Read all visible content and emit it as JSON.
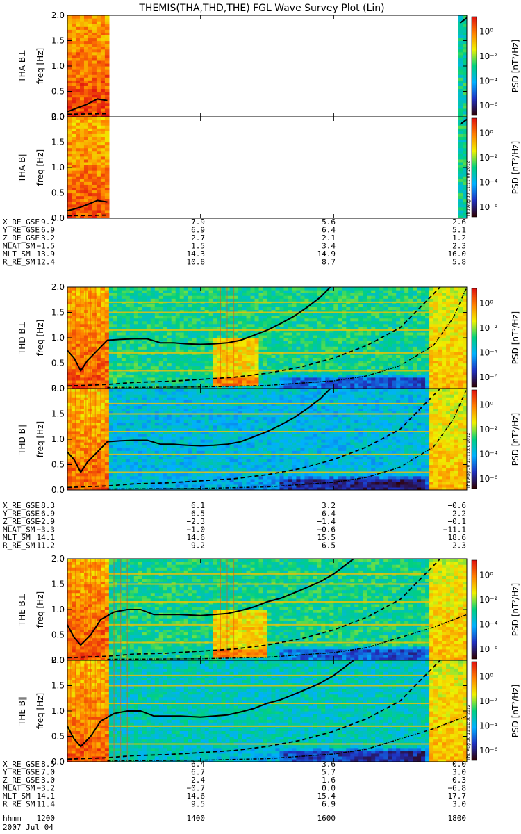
{
  "title": "THEMIS(THA,THD,THE) FGL Wave Survey Plot (Lin)",
  "timestamp": "Thu Aug 30 11:11:00 2012",
  "freq_axis_label": "freq [Hz]",
  "colorbar": {
    "label": "PSD [nT²/Hz]",
    "ticks": [
      "10⁰",
      "10⁻²",
      "10⁻⁴",
      "10⁻⁶"
    ],
    "log_exponents": [
      0,
      -2,
      -4,
      -6
    ],
    "range": [
      -6.8,
      1.2
    ],
    "colors": [
      "#300000",
      "#2030c0",
      "#00b0ff",
      "#00d080",
      "#f0f000",
      "#ff8000",
      "#e01010"
    ]
  },
  "eph_labels": [
    "X_RE_GSE",
    "Y_RE_GSE",
    "Z_RE_GSE",
    "MLAT_SM",
    "MLT_SM",
    "R_RE_SM"
  ],
  "time_axis": {
    "row_label": "hhmm",
    "date": "2007 Jul 04",
    "ticks": [
      "1200",
      "1400",
      "1600",
      "1800"
    ],
    "range_hours": [
      12,
      18
    ]
  },
  "probes": [
    {
      "id": "THA",
      "eph_values": [
        [
          "9.7",
          "7.9",
          "5.6",
          "2.6"
        ],
        [
          "6.9",
          "6.9",
          "6.4",
          "5.1"
        ],
        [
          "−3.2",
          "−2.7",
          "−2.1",
          "−1.2"
        ],
        [
          "−1.5",
          "1.5",
          "3.4",
          "2.3"
        ],
        [
          "13.9",
          "14.3",
          "14.9",
          "16.0"
        ],
        [
          "12.4",
          "10.8",
          "8.7",
          "5.8"
        ]
      ]
    },
    {
      "id": "THD",
      "eph_values": [
        [
          "8.3",
          "6.1",
          "3.2",
          "−0.6"
        ],
        [
          "6.9",
          "6.5",
          "6.4",
          "2.2"
        ],
        [
          "−2.9",
          "−2.3",
          "−1.4",
          "−0.1"
        ],
        [
          "−3.3",
          "−1.0",
          "−0.6",
          "−11.1"
        ],
        [
          "14.1",
          "14.6",
          "15.5",
          "18.6"
        ],
        [
          "11.2",
          "9.2",
          "6.5",
          "2.3"
        ]
      ]
    },
    {
      "id": "THE",
      "eph_values": [
        [
          "8.5",
          "6.4",
          "3.6",
          "0.0"
        ],
        [
          "7.0",
          "6.7",
          "5.7",
          "3.0"
        ],
        [
          "−3.0",
          "−2.4",
          "−1.6",
          "−0.3"
        ],
        [
          "−3.2",
          "−0.7",
          "0.0",
          "−6.8"
        ],
        [
          "14.1",
          "14.6",
          "15.4",
          "17.7"
        ],
        [
          "11.4",
          "9.5",
          "6.9",
          "3.0"
        ]
      ]
    }
  ],
  "chart_data": {
    "type": "heatmap",
    "title": "THEMIS(THA,THD,THE) FGL Wave Survey Plot (Lin)",
    "xlabel": "hhmm",
    "x_ticks": [
      "1200",
      "1400",
      "1600",
      "1800"
    ],
    "xlim_hours": [
      12,
      18
    ],
    "ylabel": "freq [Hz]",
    "y_ticks": [
      0.0,
      0.5,
      1.0,
      1.5,
      2.0
    ],
    "ylim": [
      0,
      2
    ],
    "zlabel": "PSD [nT²/Hz]",
    "z_log_range": [
      -6.8,
      1.2
    ],
    "panels": [
      {
        "label": "THA B⊥",
        "data_hours": [
          [
            12.0,
            12.6
          ],
          [
            17.9,
            18.0
          ]
        ],
        "hf_level": -0.3,
        "lf_level": 0.6,
        "background_level": -0.5,
        "solid_line_hz": [
          [
            12.0,
            0.1
          ],
          [
            12.1,
            0.15
          ],
          [
            12.2,
            0.2
          ],
          [
            12.3,
            0.25
          ],
          [
            12.45,
            0.35
          ],
          [
            12.6,
            0.32
          ]
        ],
        "dashed_line_hz": [
          [
            12.0,
            0.05
          ],
          [
            12.6,
            0.06
          ]
        ],
        "right_edge_line_hz": [
          [
            17.9,
            1.85
          ],
          [
            18.0,
            1.95
          ]
        ]
      },
      {
        "label": "THA B∥",
        "data_hours": [
          [
            12.0,
            12.6
          ],
          [
            17.9,
            18.0
          ]
        ],
        "hf_level": -2.0,
        "lf_level": 0.4,
        "background_level": -2.4,
        "solid_line_hz": [
          [
            12.0,
            0.15
          ],
          [
            12.1,
            0.18
          ],
          [
            12.2,
            0.22
          ],
          [
            12.3,
            0.27
          ],
          [
            12.45,
            0.35
          ],
          [
            12.6,
            0.32
          ]
        ],
        "dashed_line_hz": [
          [
            12.0,
            0.05
          ],
          [
            12.6,
            0.06
          ]
        ],
        "right_edge_line_hz": [
          [
            17.9,
            1.85
          ],
          [
            18.0,
            1.95
          ]
        ]
      },
      {
        "label": "THD B⊥",
        "data_hours": [
          [
            12.0,
            18.0
          ]
        ],
        "hf_level": -3.3,
        "lf_level": 0.4,
        "background_level": -3.3,
        "solid_line_hz": [
          [
            12.0,
            0.75
          ],
          [
            12.1,
            0.6
          ],
          [
            12.2,
            0.35
          ],
          [
            12.3,
            0.55
          ],
          [
            12.45,
            0.75
          ],
          [
            12.6,
            0.95
          ],
          [
            12.8,
            0.97
          ],
          [
            13.0,
            0.98
          ],
          [
            13.2,
            0.98
          ],
          [
            13.4,
            0.9
          ],
          [
            13.6,
            0.9
          ],
          [
            13.8,
            0.88
          ],
          [
            14.0,
            0.87
          ],
          [
            14.2,
            0.88
          ],
          [
            14.4,
            0.9
          ],
          [
            14.6,
            0.95
          ],
          [
            14.8,
            1.05
          ],
          [
            15.0,
            1.15
          ],
          [
            15.2,
            1.28
          ],
          [
            15.4,
            1.42
          ],
          [
            15.6,
            1.6
          ],
          [
            15.8,
            1.8
          ],
          [
            15.95,
            2.0
          ]
        ],
        "dashed_line_hz": [
          [
            12.0,
            0.05
          ],
          [
            12.6,
            0.08
          ],
          [
            13.0,
            0.12
          ],
          [
            13.5,
            0.14
          ],
          [
            14.0,
            0.18
          ],
          [
            14.5,
            0.22
          ],
          [
            15.0,
            0.3
          ],
          [
            15.5,
            0.42
          ],
          [
            16.0,
            0.6
          ],
          [
            16.5,
            0.85
          ],
          [
            17.0,
            1.2
          ],
          [
            17.3,
            1.6
          ],
          [
            17.6,
            2.0
          ]
        ],
        "dotdash_line_hz": [
          [
            12.6,
            0.02
          ],
          [
            14.0,
            0.03
          ],
          [
            15.0,
            0.06
          ],
          [
            16.0,
            0.15
          ],
          [
            16.5,
            0.25
          ],
          [
            17.0,
            0.45
          ],
          [
            17.5,
            0.85
          ],
          [
            17.8,
            1.4
          ],
          [
            18.0,
            2.0
          ]
        ],
        "hot_band_hz": [
          [
            14.2,
            14.9,
            0.05,
            1.0
          ]
        ],
        "vertical_streak_hours": [
          12.05,
          12.12,
          12.2,
          12.28,
          12.35,
          12.42,
          12.5,
          12.55,
          14.3,
          14.4,
          14.5
        ],
        "harmonic_line_hz": [
          0.35,
          0.7,
          1.15,
          1.5,
          1.7
        ]
      },
      {
        "label": "THD B∥",
        "data_hours": [
          [
            12.0,
            18.0
          ]
        ],
        "hf_level": -4.0,
        "lf_level": 0.2,
        "background_level": -4.2,
        "solid_line_hz": [
          [
            12.0,
            0.75
          ],
          [
            12.1,
            0.6
          ],
          [
            12.2,
            0.35
          ],
          [
            12.3,
            0.55
          ],
          [
            12.45,
            0.75
          ],
          [
            12.6,
            0.95
          ],
          [
            12.8,
            0.97
          ],
          [
            13.0,
            0.98
          ],
          [
            13.2,
            0.98
          ],
          [
            13.4,
            0.9
          ],
          [
            13.6,
            0.9
          ],
          [
            13.8,
            0.88
          ],
          [
            14.0,
            0.87
          ],
          [
            14.2,
            0.88
          ],
          [
            14.4,
            0.9
          ],
          [
            14.6,
            0.95
          ],
          [
            14.8,
            1.05
          ],
          [
            15.0,
            1.15
          ],
          [
            15.2,
            1.28
          ],
          [
            15.4,
            1.42
          ],
          [
            15.6,
            1.6
          ],
          [
            15.8,
            1.8
          ],
          [
            15.95,
            2.0
          ]
        ],
        "dashed_line_hz": [
          [
            12.0,
            0.05
          ],
          [
            12.6,
            0.08
          ],
          [
            13.0,
            0.12
          ],
          [
            13.5,
            0.14
          ],
          [
            14.0,
            0.18
          ],
          [
            14.5,
            0.22
          ],
          [
            15.0,
            0.3
          ],
          [
            15.5,
            0.42
          ],
          [
            16.0,
            0.6
          ],
          [
            16.5,
            0.85
          ],
          [
            17.0,
            1.2
          ],
          [
            17.3,
            1.6
          ],
          [
            17.6,
            2.0
          ]
        ],
        "dotdash_line_hz": [
          [
            12.6,
            0.02
          ],
          [
            14.0,
            0.03
          ],
          [
            15.0,
            0.06
          ],
          [
            16.0,
            0.15
          ],
          [
            16.5,
            0.25
          ],
          [
            17.0,
            0.45
          ],
          [
            17.5,
            0.85
          ],
          [
            17.8,
            1.4
          ],
          [
            18.0,
            2.0
          ]
        ],
        "hot_band_hz": [],
        "vertical_streak_hours": [
          12.05,
          12.12,
          12.2,
          12.28,
          12.35,
          12.42,
          12.5,
          12.55
        ],
        "harmonic_line_hz": [
          0.35,
          0.7,
          1.15,
          1.5,
          1.7
        ]
      },
      {
        "label": "THE B⊥",
        "data_hours": [
          [
            12.0,
            18.0
          ]
        ],
        "hf_level": -3.3,
        "lf_level": 0.4,
        "background_level": -3.3,
        "solid_line_hz": [
          [
            12.0,
            0.7
          ],
          [
            12.1,
            0.45
          ],
          [
            12.2,
            0.3
          ],
          [
            12.35,
            0.5
          ],
          [
            12.5,
            0.8
          ],
          [
            12.7,
            0.95
          ],
          [
            12.9,
            1.0
          ],
          [
            13.1,
            1.0
          ],
          [
            13.3,
            0.9
          ],
          [
            13.5,
            0.9
          ],
          [
            13.7,
            0.9
          ],
          [
            14.0,
            0.88
          ],
          [
            14.2,
            0.9
          ],
          [
            14.4,
            0.92
          ],
          [
            14.6,
            0.98
          ],
          [
            14.8,
            1.05
          ],
          [
            15.0,
            1.15
          ],
          [
            15.2,
            1.22
          ],
          [
            15.5,
            1.38
          ],
          [
            15.8,
            1.55
          ],
          [
            16.0,
            1.7
          ],
          [
            16.2,
            1.9
          ],
          [
            16.3,
            2.0
          ]
        ],
        "dashed_line_hz": [
          [
            12.0,
            0.05
          ],
          [
            12.6,
            0.08
          ],
          [
            13.0,
            0.12
          ],
          [
            13.5,
            0.14
          ],
          [
            14.0,
            0.18
          ],
          [
            14.5,
            0.22
          ],
          [
            15.0,
            0.3
          ],
          [
            15.5,
            0.42
          ],
          [
            16.0,
            0.6
          ],
          [
            16.5,
            0.85
          ],
          [
            17.0,
            1.2
          ],
          [
            17.3,
            1.6
          ],
          [
            17.6,
            2.0
          ]
        ],
        "dotdash_line_hz": [
          [
            12.6,
            0.02
          ],
          [
            14.0,
            0.03
          ],
          [
            15.0,
            0.06
          ],
          [
            16.0,
            0.15
          ],
          [
            16.5,
            0.25
          ],
          [
            17.0,
            0.45
          ],
          [
            17.5,
            0.65
          ],
          [
            18.0,
            0.9
          ]
        ],
        "hot_band_hz": [
          [
            14.2,
            15.0,
            0.05,
            1.0
          ]
        ],
        "vertical_streak_hours": [
          12.05,
          12.12,
          12.2,
          12.28,
          12.35,
          12.42,
          12.5,
          12.55,
          12.7,
          12.8,
          12.9,
          14.3,
          14.4,
          14.5
        ],
        "harmonic_line_hz": [
          0.35,
          0.7,
          1.15,
          1.5,
          1.7
        ]
      },
      {
        "label": "THE B∥",
        "data_hours": [
          [
            12.0,
            18.0
          ]
        ],
        "hf_level": -3.6,
        "lf_level": 0.3,
        "background_level": -3.8,
        "solid_line_hz": [
          [
            12.0,
            0.7
          ],
          [
            12.1,
            0.45
          ],
          [
            12.2,
            0.3
          ],
          [
            12.35,
            0.5
          ],
          [
            12.5,
            0.8
          ],
          [
            12.7,
            0.95
          ],
          [
            12.9,
            1.0
          ],
          [
            13.1,
            1.0
          ],
          [
            13.3,
            0.9
          ],
          [
            13.5,
            0.9
          ],
          [
            13.7,
            0.9
          ],
          [
            14.0,
            0.88
          ],
          [
            14.2,
            0.9
          ],
          [
            14.4,
            0.92
          ],
          [
            14.6,
            0.98
          ],
          [
            14.8,
            1.05
          ],
          [
            15.0,
            1.15
          ],
          [
            15.2,
            1.22
          ],
          [
            15.5,
            1.38
          ],
          [
            15.8,
            1.55
          ],
          [
            16.0,
            1.7
          ],
          [
            16.2,
            1.9
          ],
          [
            16.3,
            2.0
          ]
        ],
        "dashed_line_hz": [
          [
            12.0,
            0.05
          ],
          [
            12.6,
            0.08
          ],
          [
            13.0,
            0.12
          ],
          [
            13.5,
            0.14
          ],
          [
            14.0,
            0.18
          ],
          [
            14.5,
            0.22
          ],
          [
            15.0,
            0.3
          ],
          [
            15.5,
            0.42
          ],
          [
            16.0,
            0.6
          ],
          [
            16.5,
            0.85
          ],
          [
            17.0,
            1.2
          ],
          [
            17.3,
            1.6
          ],
          [
            17.6,
            2.0
          ]
        ],
        "dotdash_line_hz": [
          [
            12.6,
            0.02
          ],
          [
            14.0,
            0.03
          ],
          [
            15.0,
            0.06
          ],
          [
            16.0,
            0.15
          ],
          [
            16.5,
            0.25
          ],
          [
            17.0,
            0.45
          ],
          [
            17.5,
            0.65
          ],
          [
            18.0,
            0.9
          ]
        ],
        "hot_band_hz": [],
        "vertical_streak_hours": [
          12.05,
          12.12,
          12.2,
          12.28,
          12.35,
          12.42,
          12.5,
          12.55,
          12.7,
          12.8,
          12.9
        ],
        "harmonic_line_hz": [
          0.35,
          0.7,
          1.15,
          1.5,
          1.7
        ]
      }
    ]
  }
}
